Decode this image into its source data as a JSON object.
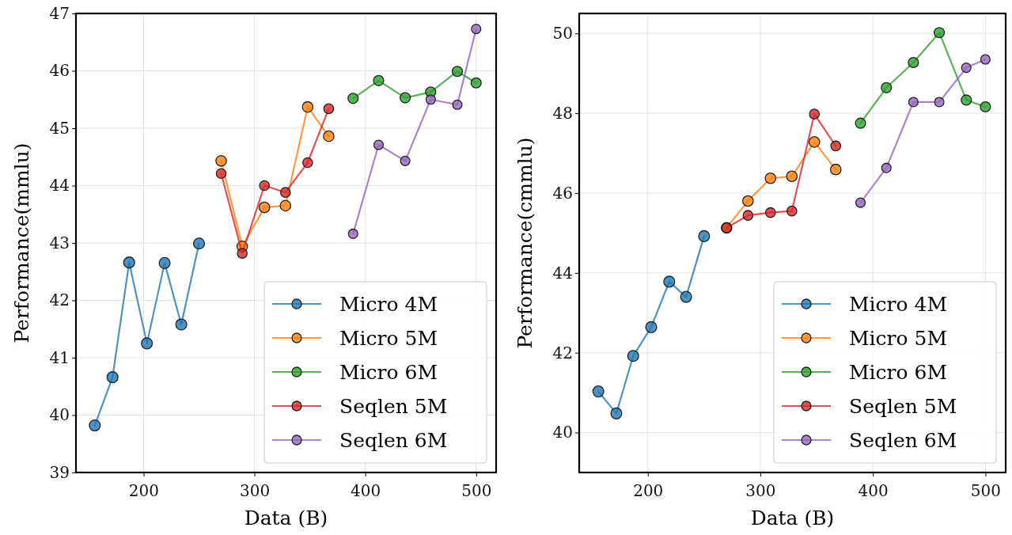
{
  "chart_data": [
    {
      "type": "line",
      "xlabel": "Data (B)",
      "ylabel": "Performance(mmlu)",
      "xlim": [
        139,
        518
      ],
      "xticks": [
        200,
        300,
        400,
        500
      ],
      "ylim": [
        39,
        47
      ],
      "yticks": [
        39,
        40,
        41,
        42,
        43,
        44,
        45,
        46,
        47
      ],
      "grid": true,
      "legend": "bottom right",
      "marker": "circle",
      "line_style": "solid",
      "series": [
        {
          "name": "Micro 4M",
          "color": "#1f77b4",
          "x": [
            156,
            172,
            187,
            203,
            219,
            234,
            250
          ],
          "values": [
            39.82,
            40.66,
            42.66,
            41.25,
            42.65,
            41.58,
            42.99
          ]
        },
        {
          "name": "Micro 5M",
          "color": "#ff7f0e",
          "x": [
            270,
            289,
            309,
            328,
            348,
            367
          ],
          "values": [
            44.43,
            42.94,
            43.62,
            43.65,
            45.37,
            44.86
          ]
        },
        {
          "name": "Micro 6M",
          "color": "#2ca02c",
          "x": [
            389,
            412,
            436,
            459,
            483,
            500
          ],
          "values": [
            45.52,
            45.83,
            45.53,
            45.63,
            45.99,
            45.79
          ]
        },
        {
          "name": "Seqlen 5M",
          "color": "#d62728",
          "x": [
            270,
            289,
            309,
            328,
            348,
            367
          ],
          "values": [
            44.21,
            42.82,
            44.0,
            43.88,
            44.4,
            45.34
          ]
        },
        {
          "name": "Seqlen 6M",
          "color": "#9467bd",
          "x": [
            389,
            412,
            436,
            459,
            483,
            500
          ],
          "values": [
            43.16,
            44.71,
            44.43,
            45.5,
            45.41,
            46.73
          ]
        }
      ]
    },
    {
      "type": "line",
      "xlabel": "Data (B)",
      "ylabel": "Performance(cmmlu)",
      "xlim": [
        139,
        518
      ],
      "xticks": [
        200,
        300,
        400,
        500
      ],
      "ylim": [
        39,
        50.5
      ],
      "yticks": [
        40,
        42,
        44,
        46,
        48,
        50
      ],
      "grid": true,
      "legend": "bottom right",
      "marker": "circle",
      "line_style": "solid",
      "series": [
        {
          "name": "Micro 4M",
          "color": "#1f77b4",
          "x": [
            156,
            172,
            187,
            203,
            219,
            234,
            250
          ],
          "values": [
            41.03,
            40.48,
            41.92,
            42.64,
            43.78,
            43.4,
            44.92
          ]
        },
        {
          "name": "Micro 5M",
          "color": "#ff7f0e",
          "x": [
            270,
            289,
            309,
            328,
            348,
            367
          ],
          "values": [
            45.13,
            45.8,
            46.37,
            46.42,
            47.28,
            46.59
          ]
        },
        {
          "name": "Micro 6M",
          "color": "#2ca02c",
          "x": [
            389,
            412,
            436,
            459,
            483,
            500
          ],
          "values": [
            47.75,
            48.64,
            49.27,
            50.02,
            48.33,
            48.16
          ]
        },
        {
          "name": "Seqlen 5M",
          "color": "#d62728",
          "x": [
            270,
            289,
            309,
            328,
            348,
            367
          ],
          "values": [
            45.13,
            45.44,
            45.51,
            45.55,
            47.98,
            47.18
          ]
        },
        {
          "name": "Seqlen 6M",
          "color": "#9467bd",
          "x": [
            389,
            412,
            436,
            459,
            483,
            500
          ],
          "values": [
            45.76,
            46.63,
            48.28,
            48.28,
            49.14,
            49.35
          ]
        }
      ]
    }
  ]
}
